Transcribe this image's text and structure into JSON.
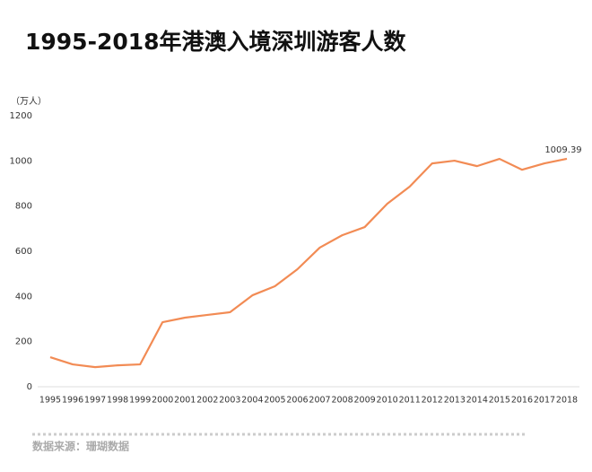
{
  "chart_data": {
    "type": "line",
    "title": "1995-2018年港澳入境深圳游客人数",
    "y_unit": "（万人）",
    "source": "数据来源：珊瑚数据",
    "categories": [
      "1995",
      "1996",
      "1997",
      "1998",
      "1999",
      "2000",
      "2001",
      "2002",
      "2003",
      "2004",
      "2005",
      "2006",
      "2007",
      "2008",
      "2009",
      "2010",
      "2011",
      "2012",
      "2013",
      "2014",
      "2015",
      "2016",
      "2017",
      "2018"
    ],
    "values": [
      131,
      99,
      87,
      95,
      99,
      286,
      306,
      318,
      330,
      405,
      445,
      520,
      616,
      671,
      707,
      810,
      886,
      989,
      1001,
      977,
      1009,
      961,
      989,
      1009.39
    ],
    "value_labels": [
      null,
      null,
      null,
      null,
      null,
      null,
      null,
      null,
      null,
      null,
      null,
      null,
      null,
      null,
      null,
      null,
      null,
      null,
      null,
      null,
      null,
      null,
      null,
      "1009.39"
    ],
    "color": "#f28b54",
    "ylim": [
      0,
      1200
    ],
    "yticks": [
      0,
      200,
      400,
      600,
      800,
      1000,
      1200
    ],
    "grid": false
  }
}
